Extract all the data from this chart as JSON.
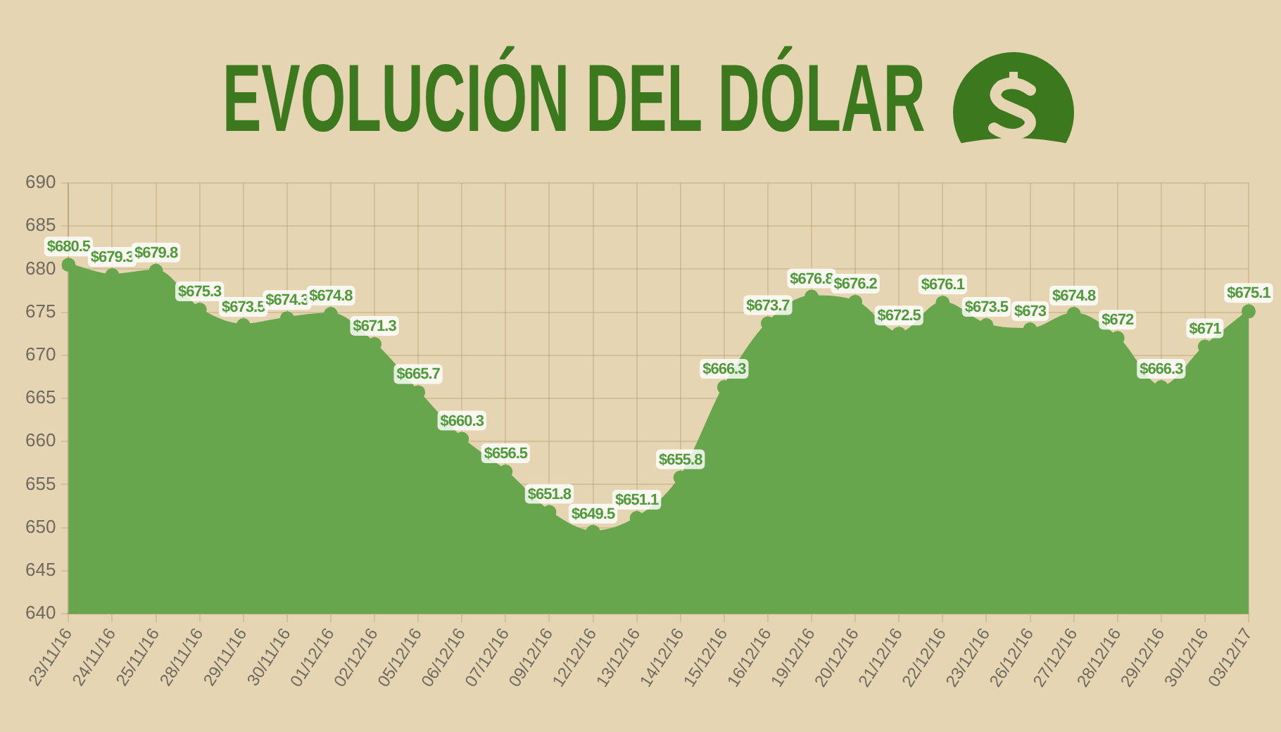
{
  "chart_data": {
    "type": "area",
    "title": "EVOLUCIÓN DEL DÓLAR",
    "categories": [
      "23/11/16",
      "24/11/16",
      "25/11/16",
      "28/11/16",
      "29/11/16",
      "30/11/16",
      "01/12/16",
      "02/12/16",
      "05/12/16",
      "06/12/16",
      "07/12/16",
      "09/12/16",
      "12/12/16",
      "13/12/16",
      "14/12/16",
      "15/12/16",
      "16/12/16",
      "19/12/16",
      "20/12/16",
      "21/12/16",
      "22/12/16",
      "23/12/16",
      "26/12/16",
      "27/12/16",
      "28/12/16",
      "29/12/16",
      "30/12/16",
      "03/12/17"
    ],
    "values": [
      680.5,
      679.3,
      679.8,
      675.3,
      673.5,
      674.3,
      674.8,
      671.3,
      665.7,
      660.3,
      656.5,
      651.8,
      649.5,
      651.1,
      655.8,
      666.3,
      673.7,
      676.8,
      676.2,
      672.5,
      676.1,
      673.5,
      673,
      674.8,
      672,
      666.3,
      671,
      675.1
    ],
    "value_labels": [
      "$680.5",
      "$679.3",
      "$679.8",
      "$675.3",
      "$673.5",
      "$674.3",
      "$674.8",
      "$671.3",
      "$665.7",
      "$660.3",
      "$656.5",
      "$651.8",
      "$649.5",
      "$651.1",
      "$655.8",
      "$666.3",
      "$673.7",
      "$676.8",
      "$676.2",
      "$672.5",
      "$676.1",
      "$673.5",
      "$673",
      "$674.8",
      "$672",
      "$666.3",
      "$671",
      "$675.1"
    ],
    "color": "#68a64e",
    "ylim": [
      640,
      690
    ],
    "yticks": [
      640,
      645,
      650,
      655,
      660,
      665,
      670,
      675,
      680,
      685,
      690
    ],
    "grid": true,
    "marker": "circle"
  }
}
